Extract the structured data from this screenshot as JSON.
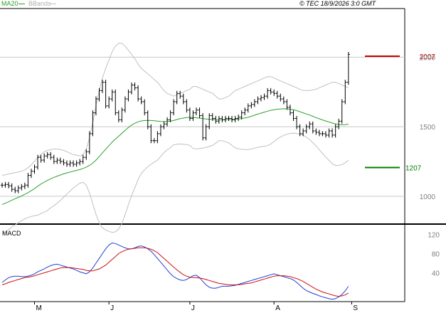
{
  "header": {
    "legend_ma20": "MA20",
    "legend_bbands": "BBands",
    "copyright": "© TEC 18/9/2026 3:0 GMT"
  },
  "colors": {
    "ohlc": "#000000",
    "ma20": "#2ca02c",
    "bbands": "#c0c0c0",
    "macd": "#1f3fd8",
    "signal": "#d01010",
    "resistance": "#cc0000",
    "support": "#008000"
  },
  "chart_data": [
    {
      "type": "ohlc",
      "panel": "price",
      "ylim": [
        800,
        2350
      ],
      "yticks": [
        1000,
        1500,
        2000
      ],
      "ytick_labels": [
        "1000",
        "1500",
        "2000"
      ],
      "grid": true,
      "xlabels": [
        "M",
        "J",
        "J",
        "A",
        "S"
      ],
      "xlabel_index": [
        10,
        33,
        58,
        84,
        108
      ],
      "lines": {
        "resistance": {
          "label": "2007",
          "value": 2007
        },
        "support": {
          "label": "1207",
          "value": 1207
        }
      },
      "close": [
        1080,
        1085,
        1075,
        1050,
        1040,
        1060,
        1070,
        1080,
        1150,
        1180,
        1210,
        1280,
        1260,
        1290,
        1300,
        1280,
        1250,
        1260,
        1250,
        1240,
        1230,
        1240,
        1230,
        1240,
        1250,
        1280,
        1320,
        1450,
        1600,
        1700,
        1760,
        1820,
        1650,
        1700,
        1750,
        1600,
        1550,
        1620,
        1700,
        1750,
        1800,
        1780,
        1700,
        1680,
        1600,
        1500,
        1400,
        1400,
        1450,
        1500,
        1520,
        1550,
        1600,
        1680,
        1740,
        1720,
        1680,
        1620,
        1560,
        1600,
        1620,
        1580,
        1420,
        1500,
        1580,
        1560,
        1540,
        1560,
        1550,
        1560,
        1560,
        1550,
        1560,
        1570,
        1600,
        1620,
        1650,
        1660,
        1680,
        1700,
        1710,
        1720,
        1760,
        1750,
        1740,
        1720,
        1700,
        1680,
        1640,
        1600,
        1560,
        1500,
        1450,
        1470,
        1500,
        1520,
        1470,
        1460,
        1450,
        1450,
        1440,
        1470,
        1440,
        1500,
        1540,
        1680,
        1820,
        2020
      ],
      "series": [
        {
          "name": "MA20",
          "values": [
            940,
            950,
            960,
            972,
            982,
            992,
            1002,
            1014,
            1026,
            1040,
            1055,
            1072,
            1088,
            1102,
            1114,
            1126,
            1136,
            1145,
            1153,
            1161,
            1168,
            1174,
            1180,
            1186,
            1192,
            1200,
            1210,
            1222,
            1238,
            1260,
            1285,
            1312,
            1338,
            1364,
            1390,
            1412,
            1432,
            1452,
            1474,
            1494,
            1512,
            1525,
            1535,
            1542,
            1545,
            1546,
            1545,
            1543,
            1540,
            1538,
            1537,
            1537,
            1540,
            1545,
            1552,
            1558,
            1562,
            1566,
            1568,
            1567,
            1565,
            1562,
            1558,
            1556,
            1554,
            1553,
            1551,
            1550,
            1550,
            1551,
            1552,
            1553,
            1554,
            1556,
            1559,
            1563,
            1568,
            1575,
            1583,
            1591,
            1598,
            1605,
            1612,
            1618,
            1622,
            1626,
            1628,
            1629,
            1628,
            1626,
            1622,
            1616,
            1608,
            1600,
            1592,
            1584,
            1575,
            1566,
            1557,
            1549,
            1541,
            1534,
            1527,
            1521,
            1516,
            1514,
            1515,
            1520
          ]
        },
        {
          "name": "",
          "values": [
            1150,
            1155,
            1160,
            1165,
            1170,
            1175,
            1180,
            1190,
            1205,
            1225,
            1250,
            1280,
            1300,
            1320,
            1330,
            1335,
            1340,
            1340,
            1335,
            1330,
            1320,
            1310,
            1300,
            1295,
            1290,
            1300,
            1340,
            1420,
            1530,
            1650,
            1760,
            1850,
            1920,
            1980,
            2040,
            2080,
            2100,
            2100,
            2080,
            2050,
            2020,
            1990,
            1950,
            1920,
            1900,
            1880,
            1860,
            1840,
            1820,
            1790,
            1760,
            1740,
            1730,
            1720,
            1730,
            1740,
            1750,
            1760,
            1770,
            1790,
            1790,
            1780,
            1770,
            1760,
            1750,
            1740,
            1720,
            1700,
            1700,
            1710,
            1720,
            1740,
            1760,
            1770,
            1780,
            1790,
            1800,
            1810,
            1820,
            1830,
            1840,
            1850,
            1860,
            1860,
            1850,
            1840,
            1830,
            1820,
            1810,
            1800,
            1790,
            1780,
            1770,
            1760,
            1760,
            1760,
            1765,
            1770,
            1780,
            1790,
            1800,
            1810,
            1820,
            1820,
            1810,
            1800,
            1790,
            1780
          ]
        },
        {
          "name": "",
          "values": [
            730,
            745,
            760,
            779,
            794,
            809,
            824,
            838,
            847,
            855,
            860,
            864,
            876,
            884,
            898,
            917,
            932,
            950,
            971,
            992,
            1016,
            1038,
            1060,
            1077,
            1094,
            1100,
            1080,
            1024,
            946,
            870,
            810,
            774,
            756,
            748,
            740,
            744,
            764,
            804,
            868,
            938,
            1004,
            1060,
            1120,
            1164,
            1190,
            1212,
            1230,
            1246,
            1260,
            1286,
            1314,
            1334,
            1350,
            1370,
            1374,
            1376,
            1374,
            1372,
            1366,
            1344,
            1340,
            1344,
            1346,
            1352,
            1358,
            1366,
            1382,
            1400,
            1400,
            1392,
            1384,
            1366,
            1348,
            1342,
            1338,
            1336,
            1336,
            1340,
            1346,
            1352,
            1356,
            1360,
            1364,
            1376,
            1394,
            1412,
            1426,
            1438,
            1446,
            1452,
            1454,
            1452,
            1446,
            1440,
            1424,
            1408,
            1385,
            1362,
            1334,
            1308,
            1282,
            1258,
            1234,
            1222,
            1222,
            1228,
            1240,
            1260
          ]
        }
      ]
    },
    {
      "type": "line",
      "panel": "macd",
      "title": "MACD",
      "ylim": [
        -20,
        140
      ],
      "yticks": [
        120,
        80,
        40
      ],
      "ytick_labels": [
        "120",
        "80",
        "40"
      ],
      "series": [
        {
          "name": "",
          "values": [
            20,
            25,
            30,
            32,
            33,
            33,
            32,
            32,
            33,
            35,
            38,
            42,
            45,
            48,
            52,
            55,
            57,
            58,
            56,
            54,
            52,
            50,
            48,
            45,
            42,
            40,
            38,
            42,
            50,
            60,
            70,
            80,
            90,
            98,
            102,
            101,
            98,
            95,
            92,
            90,
            90,
            92,
            95,
            96,
            94,
            90,
            85,
            78,
            70,
            62,
            54,
            46,
            38,
            32,
            28,
            25,
            24,
            26,
            30,
            34,
            35,
            30,
            22,
            15,
            10,
            8,
            8,
            10,
            12,
            12,
            12,
            13,
            14,
            16,
            18,
            20,
            22,
            24,
            26,
            28,
            30,
            32,
            34,
            36,
            38,
            36,
            34,
            32,
            30,
            28,
            25,
            20,
            14,
            8,
            3,
            0,
            -3,
            -5,
            -8,
            -10,
            -12,
            -14,
            -15,
            -14,
            -10,
            -5,
            2,
            12
          ]
        },
        {
          "name": "",
          "values": [
            15,
            17,
            20,
            22,
            24,
            26,
            28,
            30,
            31,
            32,
            34,
            36,
            38,
            40,
            42,
            44,
            46,
            48,
            50,
            51,
            51,
            51,
            50,
            49,
            48,
            47,
            45,
            44,
            44,
            46,
            48,
            52,
            56,
            62,
            68,
            74,
            80,
            84,
            87,
            89,
            90,
            91,
            92,
            92,
            92,
            91,
            89,
            86,
            82,
            76,
            70,
            64,
            58,
            52,
            46,
            41,
            36,
            33,
            31,
            30,
            30,
            29,
            28,
            26,
            24,
            22,
            20,
            18,
            17,
            16,
            15,
            15,
            15,
            15,
            16,
            17,
            18,
            19,
            21,
            23,
            25,
            27,
            29,
            31,
            33,
            34,
            34,
            34,
            33,
            32,
            30,
            28,
            25,
            22,
            18,
            14,
            10,
            6,
            3,
            0,
            -2,
            -4,
            -6,
            -8,
            -9,
            -8,
            -6,
            -2
          ]
        }
      ]
    }
  ]
}
